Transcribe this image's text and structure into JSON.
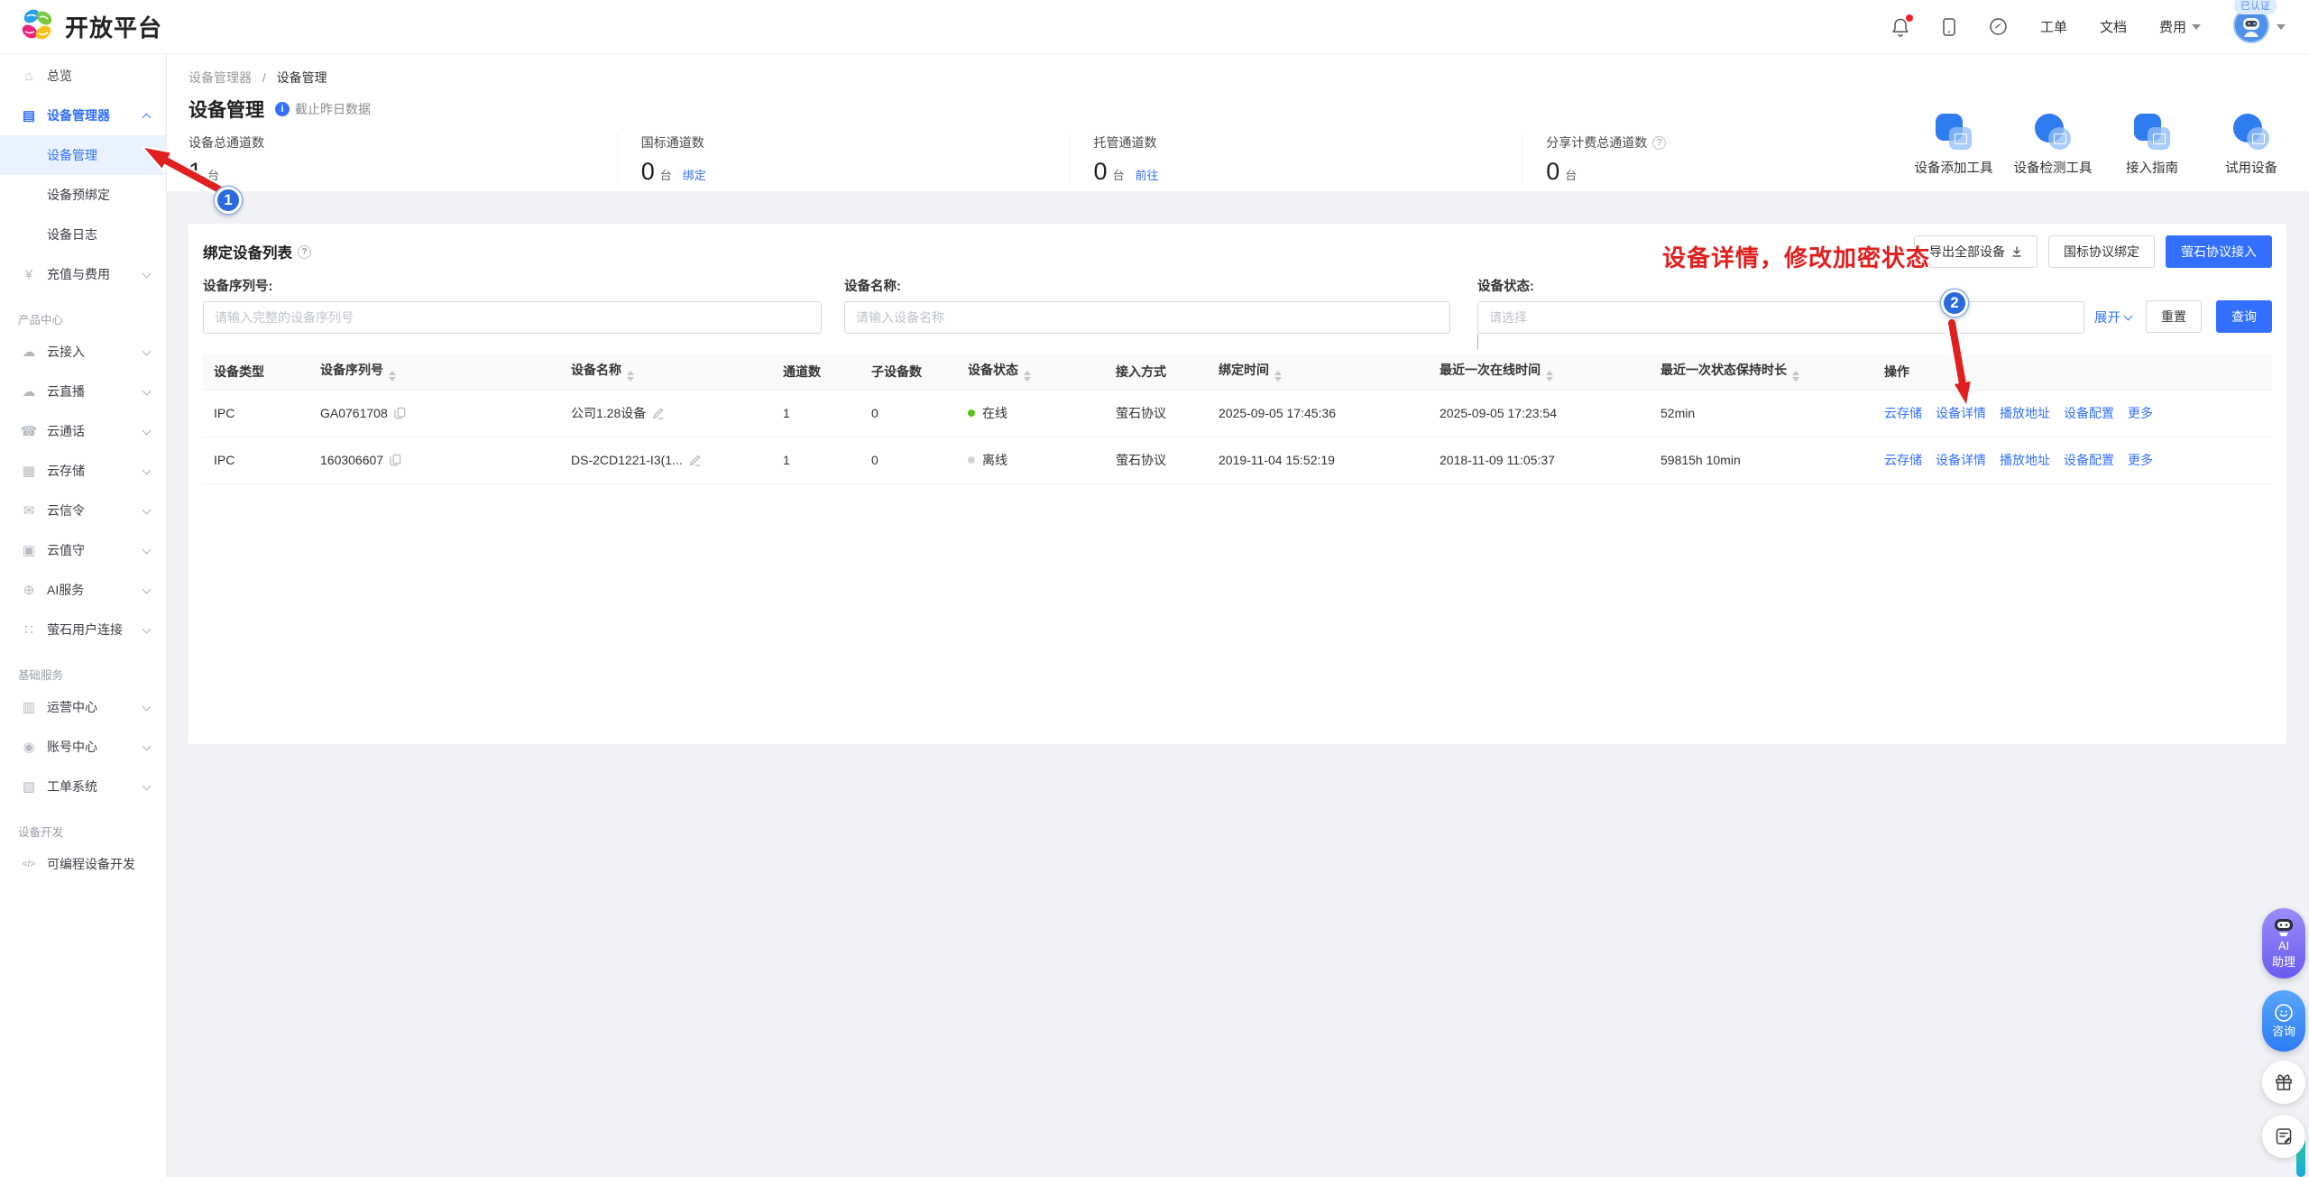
{
  "header": {
    "logo_text": "开放平台",
    "work_order": "工单",
    "docs": "文档",
    "fees": "费用",
    "verified_badge": "已认证"
  },
  "sidebar": {
    "items": [
      {
        "type": "item",
        "label": "总览",
        "icon": "home"
      },
      {
        "type": "item",
        "label": "设备管理器",
        "icon": "device-manager",
        "active": true,
        "expanded": true
      },
      {
        "type": "child",
        "label": "设备管理",
        "selected": true
      },
      {
        "type": "child",
        "label": "设备预绑定"
      },
      {
        "type": "child",
        "label": "设备日志"
      },
      {
        "type": "item",
        "label": "充值与费用",
        "icon": "coin",
        "chevron": true
      },
      {
        "type": "section",
        "label": "产品中心"
      },
      {
        "type": "item",
        "label": "云接入",
        "icon": "cloud-access",
        "chevron": true
      },
      {
        "type": "item",
        "label": "云直播",
        "icon": "cloud-live",
        "chevron": true
      },
      {
        "type": "item",
        "label": "云通话",
        "icon": "phone",
        "chevron": true
      },
      {
        "type": "item",
        "label": "云存储",
        "icon": "storage",
        "chevron": true
      },
      {
        "type": "item",
        "label": "云信令",
        "icon": "message",
        "chevron": true
      },
      {
        "type": "item",
        "label": "云值守",
        "icon": "camera",
        "chevron": true
      },
      {
        "type": "item",
        "label": "AI服务",
        "icon": "ai",
        "chevron": true
      },
      {
        "type": "item",
        "label": "萤石用户连接",
        "icon": "grid",
        "chevron": true
      },
      {
        "type": "section",
        "label": "基础服务"
      },
      {
        "type": "item",
        "label": "运营中心",
        "icon": "monitor",
        "chevron": true
      },
      {
        "type": "item",
        "label": "账号中心",
        "icon": "user",
        "chevron": true
      },
      {
        "type": "item",
        "label": "工单系统",
        "icon": "doc",
        "chevron": true
      },
      {
        "type": "section",
        "label": "设备开发"
      },
      {
        "type": "item",
        "label": "可编程设备开发",
        "icon": "code"
      }
    ]
  },
  "breadcrumb": {
    "parent": "设备管理器",
    "sep": "/",
    "current": "设备管理"
  },
  "page": {
    "title": "设备管理",
    "subtitle": "截止昨日数据"
  },
  "stats": [
    {
      "label": "设备总通道数",
      "value": "1",
      "unit": "台",
      "link": "",
      "help": false
    },
    {
      "label": "国标通道数",
      "value": "0",
      "unit": "台",
      "link": "绑定",
      "help": false
    },
    {
      "label": "托管通道数",
      "value": "0",
      "unit": "台",
      "link": "前往",
      "help": false
    },
    {
      "label": "分享计费总通道数",
      "value": "0",
      "unit": "台",
      "link": "",
      "help": true
    }
  ],
  "tools": [
    {
      "label": "设备添加工具",
      "icon": "device-add-tool",
      "shape": "sq"
    },
    {
      "label": "设备检测工具",
      "icon": "device-detect-tool",
      "shape": "ci"
    },
    {
      "label": "接入指南",
      "icon": "access-guide",
      "shape": "sq"
    },
    {
      "label": "试用设备",
      "icon": "trial-device",
      "shape": "ci"
    }
  ],
  "list_section": {
    "title": "绑定设备列表",
    "export_button": "导出全部设备",
    "gb_bind_button": "国标协议绑定",
    "ezviz_access_button": "萤石协议接入",
    "filters": [
      {
        "label": "设备序列号:",
        "placeholder": "请输入完整的设备序列号",
        "type": "input"
      },
      {
        "label": "设备名称:",
        "placeholder": "请输入设备名称",
        "type": "input"
      },
      {
        "label": "设备状态:",
        "placeholder": "请选择",
        "type": "select"
      }
    ],
    "expand_link": "展开",
    "reset_button": "重置",
    "search_button": "查询"
  },
  "table": {
    "columns": [
      {
        "label": "设备类型",
        "sortable": false
      },
      {
        "label": "设备序列号",
        "sortable": true
      },
      {
        "label": "设备名称",
        "sortable": true
      },
      {
        "label": "通道数",
        "sortable": false
      },
      {
        "label": "子设备数",
        "sortable": false
      },
      {
        "label": "设备状态",
        "sortable": true
      },
      {
        "label": "接入方式",
        "sortable": false
      },
      {
        "label": "绑定时间",
        "sortable": true
      },
      {
        "label": "最近一次在线时间",
        "sortable": true
      },
      {
        "label": "最近一次状态保持时长",
        "sortable": true
      },
      {
        "label": "操作",
        "sortable": false
      }
    ],
    "rows": [
      {
        "type": "IPC",
        "serial": "GA0761708",
        "name": "公司1.28设备",
        "channels": "1",
        "sub_devices": "0",
        "status": "在线",
        "status_color": "#52c41a",
        "access": "萤石协议",
        "bind_time": "2025-09-05 17:45:36",
        "last_online": "2025-09-05 17:23:54",
        "duration": "52min"
      },
      {
        "type": "IPC",
        "serial": "160306607",
        "name": "DS-2CD1221-I3(1...",
        "channels": "1",
        "sub_devices": "0",
        "status": "离线",
        "status_color": "#d4d4d4",
        "access": "萤石协议",
        "bind_time": "2019-11-04 15:52:19",
        "last_online": "2018-11-09 11:05:37",
        "duration": "59815h 10min"
      }
    ],
    "row_actions": [
      "云存储",
      "设备详情",
      "播放地址",
      "设备配置",
      "更多"
    ]
  },
  "annotations": {
    "step1": "1",
    "step2": "2",
    "note": "设备详情，修改加密状态"
  },
  "float_widgets": {
    "ai_line1": "AI",
    "ai_line2": "助理",
    "consult": "咨询"
  },
  "colors": {
    "primary": "#3370ff",
    "annotation_red": "#e01f1f",
    "online_green": "#52c41a",
    "offline_gray": "#d4d4d4",
    "selected_menu_bg": "#e8f3ff"
  }
}
